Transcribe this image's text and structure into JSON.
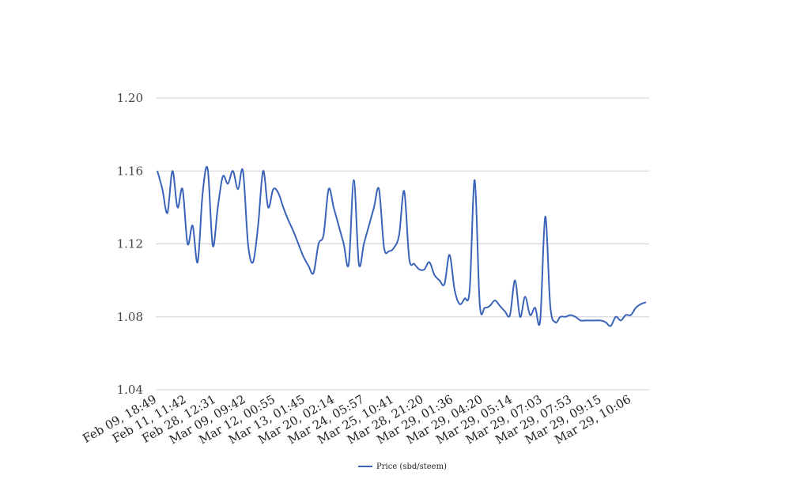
{
  "chart_data": {
    "type": "line",
    "title": "",
    "xlabel": "",
    "ylabel": "",
    "ylim": [
      1.04,
      1.2
    ],
    "yticks": [
      "1.20",
      "1.16",
      "1.12",
      "1.08",
      "1.04"
    ],
    "xtick_labels": [
      "Feb 09, 18:49",
      "Feb 11, 11:42",
      "Feb 28, 12:31",
      "Mar 09, 09:42",
      "Mar 12, 00:55",
      "Mar 13, 01:45",
      "Mar 20, 02:14",
      "Mar 24, 05:57",
      "Mar 25, 10:41",
      "Mar 28, 21:20",
      "Mar 29, 01:36",
      "Mar 29, 04:20",
      "Mar 29, 05:14",
      "Mar 29, 07:03",
      "Mar 29, 07:53",
      "Mar 29, 09:15",
      "Mar 29, 10:06"
    ],
    "grid": true,
    "legend_position": "bottom-center",
    "series": [
      {
        "name": "Price (sbd/steem)",
        "color": "#3a63b8",
        "values": [
          1.16,
          1.15,
          1.137,
          1.16,
          1.14,
          1.15,
          1.12,
          1.13,
          1.11,
          1.148,
          1.161,
          1.119,
          1.14,
          1.157,
          1.153,
          1.16,
          1.15,
          1.16,
          1.12,
          1.11,
          1.13,
          1.16,
          1.14,
          1.15,
          1.148,
          1.14,
          1.133,
          1.127,
          1.12,
          1.113,
          1.108,
          1.104,
          1.12,
          1.125,
          1.15,
          1.14,
          1.13,
          1.12,
          1.109,
          1.155,
          1.109,
          1.12,
          1.13,
          1.14,
          1.15,
          1.118,
          1.116,
          1.118,
          1.125,
          1.149,
          1.112,
          1.109,
          1.106,
          1.106,
          1.11,
          1.103,
          1.1,
          1.098,
          1.114,
          1.095,
          1.087,
          1.09,
          1.095,
          1.155,
          1.087,
          1.085,
          1.086,
          1.089,
          1.086,
          1.083,
          1.081,
          1.1,
          1.08,
          1.091,
          1.081,
          1.085,
          1.078,
          1.135,
          1.086,
          1.077,
          1.08,
          1.08,
          1.081,
          1.08,
          1.078,
          1.078,
          1.078,
          1.078,
          1.078,
          1.077,
          1.075,
          1.08,
          1.078,
          1.081,
          1.081,
          1.085,
          1.087,
          1.088
        ]
      }
    ]
  }
}
